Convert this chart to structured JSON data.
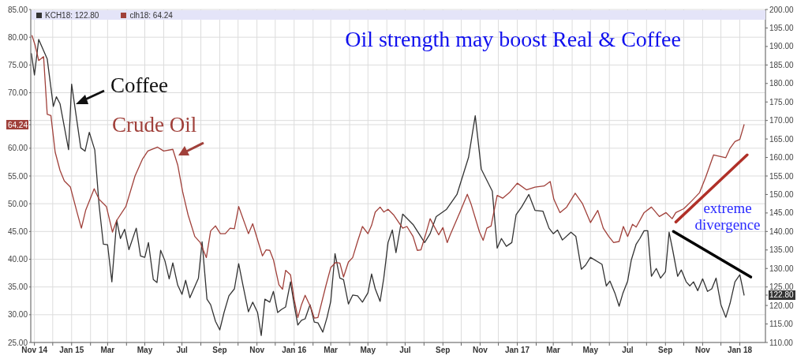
{
  "chart_data": {
    "type": "line",
    "title": "Oil strength may boost Real & Coffee",
    "annotations": [
      "Coffee",
      "Crude Oil",
      "extreme divergence"
    ],
    "xlim": [
      "2014-10-26",
      "2018-02-12"
    ],
    "xticks": [
      {
        "value": "2014-11",
        "label": "Nov 14"
      },
      {
        "value": "2014-12",
        "label": null
      },
      {
        "value": "2015-01",
        "label": "Jan 15"
      },
      {
        "value": "2015-02",
        "label": null
      },
      {
        "value": "2015-03",
        "label": "Mar"
      },
      {
        "value": "2015-04",
        "label": null
      },
      {
        "value": "2015-05",
        "label": "May"
      },
      {
        "value": "2015-06",
        "label": null
      },
      {
        "value": "2015-07",
        "label": "Jul"
      },
      {
        "value": "2015-08",
        "label": null
      },
      {
        "value": "2015-09",
        "label": "Sep"
      },
      {
        "value": "2015-10",
        "label": null
      },
      {
        "value": "2015-11",
        "label": "Nov"
      },
      {
        "value": "2015-12",
        "label": null
      },
      {
        "value": "2016-01",
        "label": "Jan 16"
      },
      {
        "value": "2016-02",
        "label": null
      },
      {
        "value": "2016-03",
        "label": "Mar"
      },
      {
        "value": "2016-04",
        "label": null
      },
      {
        "value": "2016-05",
        "label": "May"
      },
      {
        "value": "2016-06",
        "label": null
      },
      {
        "value": "2016-07",
        "label": "Jul"
      },
      {
        "value": "2016-08",
        "label": null
      },
      {
        "value": "2016-09",
        "label": "Sep"
      },
      {
        "value": "2016-10",
        "label": null
      },
      {
        "value": "2016-11",
        "label": "Nov"
      },
      {
        "value": "2016-12",
        "label": null
      },
      {
        "value": "2017-01",
        "label": "Jan 17"
      },
      {
        "value": "2017-02",
        "label": null
      },
      {
        "value": "2017-03",
        "label": "Mar"
      },
      {
        "value": "2017-04",
        "label": null
      },
      {
        "value": "2017-05",
        "label": "May"
      },
      {
        "value": "2017-06",
        "label": null
      },
      {
        "value": "2017-07",
        "label": "Jul"
      },
      {
        "value": "2017-08",
        "label": null
      },
      {
        "value": "2017-09",
        "label": "Sep"
      },
      {
        "value": "2017-10",
        "label": null
      },
      {
        "value": "2017-11",
        "label": "Nov"
      },
      {
        "value": "2017-12",
        "label": null
      },
      {
        "value": "2018-01",
        "label": "Jan 18"
      }
    ],
    "ylim": [
      25,
      85
    ],
    "yticks": [
      {
        "value": 25,
        "label": "25.00"
      },
      {
        "value": 30,
        "label": "30.00"
      },
      {
        "value": 35,
        "label": "35.00"
      },
      {
        "value": 40,
        "label": "40.00"
      },
      {
        "value": 45,
        "label": "45.00"
      },
      {
        "value": 50,
        "label": "50.00"
      },
      {
        "value": 55,
        "label": "55.00"
      },
      {
        "value": 60,
        "label": "60.00"
      },
      {
        "value": 64.24,
        "label": "64.24"
      },
      {
        "value": 65,
        "label": null
      },
      {
        "value": 70,
        "label": "70.00"
      },
      {
        "value": 75,
        "label": "75.00"
      },
      {
        "value": 80,
        "label": "80.00"
      },
      {
        "value": 85,
        "label": "85.00"
      }
    ],
    "y2lim": [
      110,
      200
    ],
    "y2ticks": [
      {
        "value": 110,
        "label": "110.00"
      },
      {
        "value": 115,
        "label": "115.00"
      },
      {
        "value": 120,
        "label": "120.00"
      },
      {
        "value": 122.8,
        "label": "122.80"
      },
      {
        "value": 125,
        "label": "125.00"
      },
      {
        "value": 130,
        "label": "130.00"
      },
      {
        "value": 135,
        "label": "135.00"
      },
      {
        "value": 140,
        "label": "140.00"
      },
      {
        "value": 145,
        "label": "145.00"
      },
      {
        "value": 150,
        "label": "150.00"
      },
      {
        "value": 155,
        "label": "155.00"
      },
      {
        "value": 160,
        "label": "160.00"
      },
      {
        "value": 165,
        "label": "165.00"
      },
      {
        "value": 170,
        "label": "170.00"
      },
      {
        "value": 175,
        "label": "175.00"
      },
      {
        "value": 180,
        "label": "180.00"
      },
      {
        "value": 185,
        "label": "185.00"
      },
      {
        "value": 190,
        "label": "190.00"
      },
      {
        "value": 195,
        "label": "195.00"
      },
      {
        "value": 200,
        "label": "200.00"
      }
    ],
    "grid": true,
    "legend": "top left",
    "marker": "none",
    "line_style": "solid",
    "series": [
      {
        "name": "KCH18: 122.80",
        "color": "#333333",
        "axis": "y2",
        "x": [
          "2014-10-27",
          "2014-11-01",
          "2014-11-08",
          "2014-11-22",
          "2014-12-02",
          "2014-12-07",
          "2014-12-13",
          "2014-12-27",
          "2015-01-01",
          "2015-01-16",
          "2015-01-23",
          "2015-01-30",
          "2015-02-08",
          "2015-02-15",
          "2015-02-22",
          "2015-03-01",
          "2015-03-08",
          "2015-03-16",
          "2015-03-22",
          "2015-03-29",
          "2015-04-05",
          "2015-04-17",
          "2015-04-24",
          "2015-05-01",
          "2015-05-07",
          "2015-05-15",
          "2015-05-21",
          "2015-05-27",
          "2015-06-03",
          "2015-06-10",
          "2015-06-16",
          "2015-06-24",
          "2015-07-01",
          "2015-07-07",
          "2015-07-14",
          "2015-07-28",
          "2015-08-03",
          "2015-08-11",
          "2015-08-17",
          "2015-08-25",
          "2015-09-01",
          "2015-09-08",
          "2015-09-16",
          "2015-09-25",
          "2015-10-02",
          "2015-10-09",
          "2015-10-18",
          "2015-10-25",
          "2015-11-02",
          "2015-11-08",
          "2015-11-14",
          "2015-11-22",
          "2015-11-28",
          "2015-12-05",
          "2015-12-11",
          "2015-12-18",
          "2015-12-26",
          "2016-01-01",
          "2016-01-07",
          "2016-01-13",
          "2016-01-19",
          "2016-01-27",
          "2016-02-03",
          "2016-02-09",
          "2016-02-17",
          "2016-02-24",
          "2016-03-01",
          "2016-03-08",
          "2016-03-16",
          "2016-03-22",
          "2016-03-30",
          "2016-04-06",
          "2016-04-14",
          "2016-04-22",
          "2016-05-01",
          "2016-05-07",
          "2016-05-13",
          "2016-05-21",
          "2016-05-27",
          "2016-06-03",
          "2016-06-10",
          "2016-06-16",
          "2016-06-27",
          "2016-07-14",
          "2016-08-02",
          "2016-08-11",
          "2016-08-21",
          "2016-09-07",
          "2016-09-24",
          "2016-10-13",
          "2016-10-24",
          "2016-11-03",
          "2016-11-21",
          "2016-11-29",
          "2016-12-06",
          "2016-12-14",
          "2016-12-23",
          "2016-12-30",
          "2017-01-08",
          "2017-01-20",
          "2017-01-30",
          "2017-02-12",
          "2017-02-22",
          "2017-03-01",
          "2017-03-08",
          "2017-03-16",
          "2017-03-30",
          "2017-04-07",
          "2017-04-16",
          "2017-04-23",
          "2017-05-01",
          "2017-05-20",
          "2017-05-27",
          "2017-06-02",
          "2017-06-10",
          "2017-06-17",
          "2017-06-23",
          "2017-07-01",
          "2017-07-07",
          "2017-07-15",
          "2017-07-21",
          "2017-07-28",
          "2017-08-03",
          "2017-08-09",
          "2017-08-17",
          "2017-08-24",
          "2017-09-01",
          "2017-09-07",
          "2017-09-13",
          "2017-09-21",
          "2017-09-27",
          "2017-10-05",
          "2017-10-11",
          "2017-10-17",
          "2017-10-24",
          "2017-11-01",
          "2017-11-09",
          "2017-11-16",
          "2017-11-23",
          "2017-12-01",
          "2017-12-09",
          "2017-12-16",
          "2017-12-24",
          "2018-01-01",
          "2018-01-08"
        ],
        "values": [
          188.1,
          182.3,
          191.9,
          186.6,
          173.8,
          176.4,
          174.5,
          162.1,
          179.8,
          162.6,
          161.7,
          166.8,
          162.0,
          147.2,
          136.6,
          136.4,
          126.4,
          143.0,
          138.1,
          140.6,
          135.1,
          140.9,
          133.4,
          133.0,
          137.0,
          127.0,
          126.2,
          134.9,
          132.1,
          127.2,
          131.5,
          125.5,
          123.0,
          126.8,
          122.1,
          127.4,
          137.2,
          121.7,
          120.2,
          115.7,
          113.4,
          118.1,
          122.6,
          124.5,
          131.3,
          125.5,
          118.3,
          120.9,
          118.1,
          111.9,
          121.7,
          120.9,
          123.8,
          118.1,
          118.9,
          119.6,
          126.4,
          120.2,
          114.7,
          116.0,
          116.4,
          120.2,
          115.5,
          115.3,
          112.8,
          116.8,
          121.1,
          134.0,
          127.4,
          127.0,
          120.4,
          122.8,
          122.6,
          120.9,
          123.4,
          128.5,
          124.5,
          121.1,
          127.4,
          137.0,
          140.4,
          134.3,
          144.7,
          141.9,
          137.0,
          139.4,
          144.0,
          146.0,
          150.0,
          160.0,
          171.3,
          156.8,
          150.9,
          135.5,
          138.1,
          136.0,
          137.0,
          144.5,
          146.6,
          150.0,
          145.7,
          145.5,
          140.9,
          139.4,
          140.4,
          137.7,
          139.8,
          138.7,
          129.8,
          130.9,
          133.0,
          131.1,
          125.3,
          126.6,
          123.4,
          119.8,
          123.2,
          126.6,
          132.3,
          136.6,
          138.1,
          140.2,
          140.2,
          127.9,
          130.0,
          127.4,
          129.1,
          139.8,
          134.9,
          127.9,
          129.6,
          126.4,
          125.3,
          126.4,
          124.0,
          127.2,
          123.8,
          124.5,
          127.4,
          120.2,
          116.8,
          120.6,
          126.4,
          128.3,
          122.8
        ]
      },
      {
        "name": "clh18: 64.24",
        "color": "#a0403a",
        "x": [
          "2014-10-28",
          "2014-11-02",
          "2014-11-08",
          "2014-11-16",
          "2014-11-22",
          "2014-11-28",
          "2014-12-05",
          "2014-12-13",
          "2014-12-20",
          "2014-12-30",
          "2015-01-10",
          "2015-01-17",
          "2015-01-24",
          "2015-02-07",
          "2015-02-15",
          "2015-02-27",
          "2015-03-09",
          "2015-03-16",
          "2015-03-31",
          "2015-04-15",
          "2015-04-27",
          "2015-05-06",
          "2015-05-22",
          "2015-06-01",
          "2015-06-16",
          "2015-06-24",
          "2015-07-02",
          "2015-07-11",
          "2015-07-22",
          "2015-07-31",
          "2015-08-10",
          "2015-08-17",
          "2015-08-25",
          "2015-09-02",
          "2015-09-10",
          "2015-09-18",
          "2015-09-25",
          "2015-10-02",
          "2015-10-18",
          "2015-10-25",
          "2015-11-10",
          "2015-11-16",
          "2015-11-22",
          "2015-11-28",
          "2015-12-07",
          "2015-12-13",
          "2015-12-18",
          "2015-12-26",
          "2016-01-01",
          "2016-01-07",
          "2016-01-13",
          "2016-01-19",
          "2016-01-28",
          "2016-02-03",
          "2016-02-09",
          "2016-02-22",
          "2016-03-01",
          "2016-03-09",
          "2016-03-16",
          "2016-03-22",
          "2016-03-30",
          "2016-04-06",
          "2016-04-14",
          "2016-04-22",
          "2016-05-01",
          "2016-05-07",
          "2016-05-13",
          "2016-05-21",
          "2016-05-27",
          "2016-06-03",
          "2016-06-12",
          "2016-06-27",
          "2016-07-04",
          "2016-07-14",
          "2016-07-21",
          "2016-07-27",
          "2016-08-04",
          "2016-08-11",
          "2016-08-25",
          "2016-09-01",
          "2016-09-08",
          "2016-09-13",
          "2016-09-29",
          "2016-10-11",
          "2016-10-17",
          "2016-10-31",
          "2016-11-06",
          "2016-11-12",
          "2016-11-19",
          "2016-11-29",
          "2016-12-08",
          "2016-12-19",
          "2017-01-01",
          "2017-01-16",
          "2017-01-30",
          "2017-02-14",
          "2017-02-24",
          "2017-03-02",
          "2017-03-12",
          "2017-03-23",
          "2017-04-06",
          "2017-04-18",
          "2017-05-01",
          "2017-05-13",
          "2017-05-22",
          "2017-05-31",
          "2017-06-08",
          "2017-06-17",
          "2017-06-24",
          "2017-07-01",
          "2017-07-09",
          "2017-07-15",
          "2017-07-28",
          "2017-08-09",
          "2017-08-22",
          "2017-09-02",
          "2017-09-12",
          "2017-09-18",
          "2017-10-01",
          "2017-10-14",
          "2017-10-27",
          "2017-11-06",
          "2017-11-19",
          "2017-12-09",
          "2017-12-16",
          "2017-12-24",
          "2018-01-01",
          "2018-01-08"
        ],
        "values": [
          80.3,
          78.6,
          75.8,
          76.5,
          66.1,
          65.9,
          59.3,
          56.0,
          54.1,
          53.0,
          48.4,
          45.6,
          48.8,
          52.7,
          50.8,
          49.5,
          44.9,
          47.0,
          49.5,
          55.0,
          58.0,
          59.5,
          60.2,
          59.5,
          59.8,
          57.0,
          52.2,
          48.0,
          44.1,
          43.0,
          40.3,
          45.1,
          46.0,
          44.6,
          44.6,
          45.6,
          45.5,
          49.5,
          44.6,
          46.4,
          40.6,
          41.7,
          41.6,
          39.9,
          35.4,
          34.6,
          38.0,
          37.2,
          32.8,
          29.5,
          31.8,
          33.5,
          31.4,
          29.4,
          29.5,
          35.2,
          38.5,
          39.4,
          39.3,
          36.8,
          39.5,
          40.3,
          43.2,
          45.9,
          44.6,
          46.1,
          48.5,
          49.4,
          48.5,
          49.0,
          48.0,
          45.6,
          45.9,
          44.1,
          41.6,
          41.7,
          44.6,
          47.3,
          44.4,
          45.7,
          43.0,
          44.4,
          48.5,
          51.7,
          50.0,
          44.9,
          43.4,
          45.6,
          46.0,
          51.5,
          51.0,
          52.0,
          53.7,
          52.5,
          53.0,
          53.2,
          54.0,
          50.8,
          48.4,
          49.4,
          51.9,
          50.0,
          46.6,
          48.8,
          45.6,
          44.1,
          43.0,
          43.2,
          45.9,
          44.1,
          46.3,
          45.8,
          48.4,
          49.4,
          47.7,
          48.4,
          47.3,
          48.4,
          49.1,
          50.5,
          52.0,
          54.8,
          58.8,
          58.3,
          60.0,
          61.2,
          61.6,
          64.24
        ]
      },
      {
        "color": "#b03028",
        "x": [
          "2017-09-18",
          "2018-01-13"
        ],
        "values": [
          46.7,
          58.8
        ]
      },
      {
        "color": "#000000",
        "axis": "y2",
        "x": [
          "2017-09-14",
          "2018-01-19"
        ],
        "values": [
          140.0,
          127.7
        ]
      }
    ]
  }
}
